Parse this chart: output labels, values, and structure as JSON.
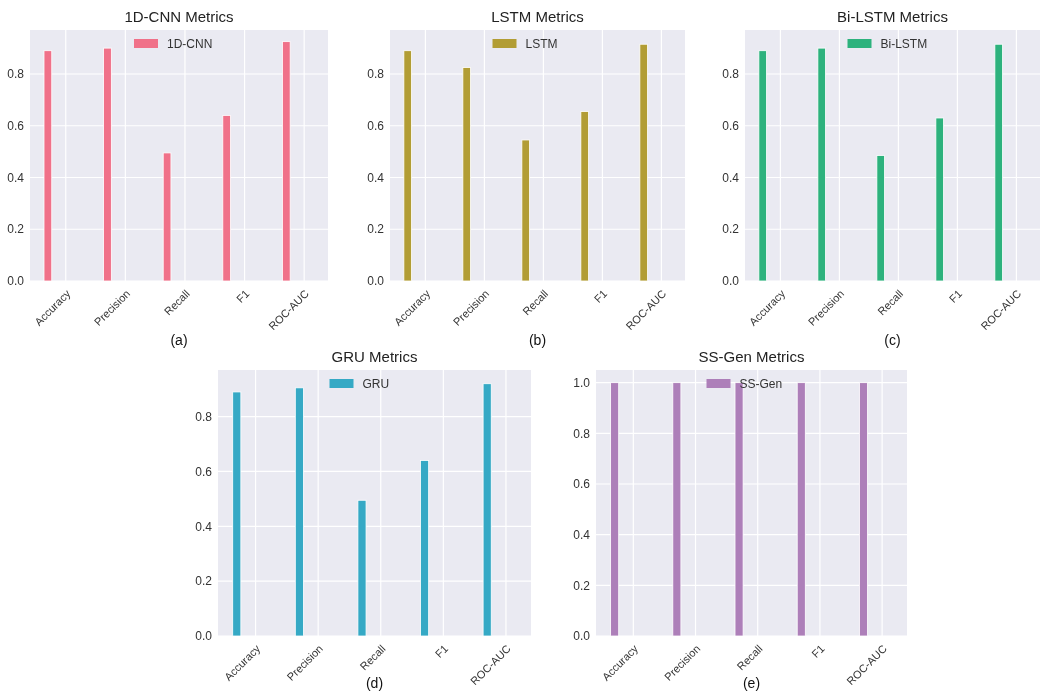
{
  "chart_data": [
    {
      "type": "bar",
      "title": "1D-CNN Metrics",
      "categories": [
        "Accuracy",
        "Precision",
        "Recall",
        "F1",
        "ROC-AUC"
      ],
      "series": [
        {
          "name": "1D-CNN",
          "color": "#f07189",
          "values": [
            0.89,
            0.9,
            0.495,
            0.64,
            0.925
          ]
        }
      ],
      "ylim": [
        0,
        0.97
      ],
      "yticks": [
        {
          "value": 0,
          "label": "0.0"
        },
        {
          "value": 0.2,
          "label": "0.2"
        },
        {
          "value": 0.4,
          "label": "0.4"
        },
        {
          "value": 0.6,
          "label": "0.6"
        },
        {
          "value": 0.8,
          "label": "0.8"
        }
      ],
      "grid": true,
      "legend": "top",
      "annotations": [
        "(a)"
      ]
    },
    {
      "type": "bar",
      "title": "LSTM Metrics",
      "categories": [
        "Accuracy",
        "Precision",
        "Recall",
        "F1",
        "ROC-AUC"
      ],
      "series": [
        {
          "name": "LSTM",
          "color": "#b29d34",
          "values": [
            0.89,
            0.825,
            0.545,
            0.655,
            0.915
          ]
        }
      ],
      "ylim": [
        0,
        0.97
      ],
      "yticks": [
        {
          "value": 0,
          "label": "0.0"
        },
        {
          "value": 0.2,
          "label": "0.2"
        },
        {
          "value": 0.4,
          "label": "0.4"
        },
        {
          "value": 0.6,
          "label": "0.6"
        },
        {
          "value": 0.8,
          "label": "0.8"
        }
      ],
      "grid": true,
      "legend": "top",
      "annotations": [
        "(b)"
      ]
    },
    {
      "type": "bar",
      "title": "Bi-LSTM Metrics",
      "categories": [
        "Accuracy",
        "Precision",
        "Recall",
        "F1",
        "ROC-AUC"
      ],
      "series": [
        {
          "name": "Bi-LSTM",
          "color": "#2db27d",
          "values": [
            0.89,
            0.9,
            0.485,
            0.63,
            0.915
          ]
        }
      ],
      "ylim": [
        0,
        0.97
      ],
      "yticks": [
        {
          "value": 0,
          "label": "0.0"
        },
        {
          "value": 0.2,
          "label": "0.2"
        },
        {
          "value": 0.4,
          "label": "0.4"
        },
        {
          "value": 0.6,
          "label": "0.6"
        },
        {
          "value": 0.8,
          "label": "0.8"
        }
      ],
      "grid": true,
      "legend": "top",
      "annotations": [
        "(c)"
      ]
    },
    {
      "type": "bar",
      "title": "GRU Metrics",
      "categories": [
        "Accuracy",
        "Precision",
        "Recall",
        "F1",
        "ROC-AUC"
      ],
      "series": [
        {
          "name": "GRU",
          "color": "#35a9c5",
          "values": [
            0.89,
            0.905,
            0.495,
            0.64,
            0.92
          ]
        }
      ],
      "ylim": [
        0,
        0.97
      ],
      "yticks": [
        {
          "value": 0,
          "label": "0.0"
        },
        {
          "value": 0.2,
          "label": "0.2"
        },
        {
          "value": 0.4,
          "label": "0.4"
        },
        {
          "value": 0.6,
          "label": "0.6"
        },
        {
          "value": 0.8,
          "label": "0.8"
        }
      ],
      "grid": true,
      "legend": "top",
      "annotations": [
        "(d)"
      ]
    },
    {
      "type": "bar",
      "title": "SS-Gen Metrics",
      "categories": [
        "Accuracy",
        "Precision",
        "Recall",
        "F1",
        "ROC-AUC"
      ],
      "series": [
        {
          "name": "SS-Gen",
          "color": "#ad7fb9",
          "values": [
            1,
            1,
            1,
            1,
            1
          ]
        }
      ],
      "ylim": [
        0,
        1.05
      ],
      "yticks": [
        {
          "value": 0,
          "label": "0.0"
        },
        {
          "value": 0.2,
          "label": "0.2"
        },
        {
          "value": 0.4,
          "label": "0.4"
        },
        {
          "value": 0.6,
          "label": "0.6"
        },
        {
          "value": 0.8,
          "label": "0.8"
        },
        {
          "value": 1,
          "label": "1.0"
        }
      ],
      "grid": true,
      "legend": "top",
      "annotations": [
        "(e)"
      ]
    }
  ]
}
